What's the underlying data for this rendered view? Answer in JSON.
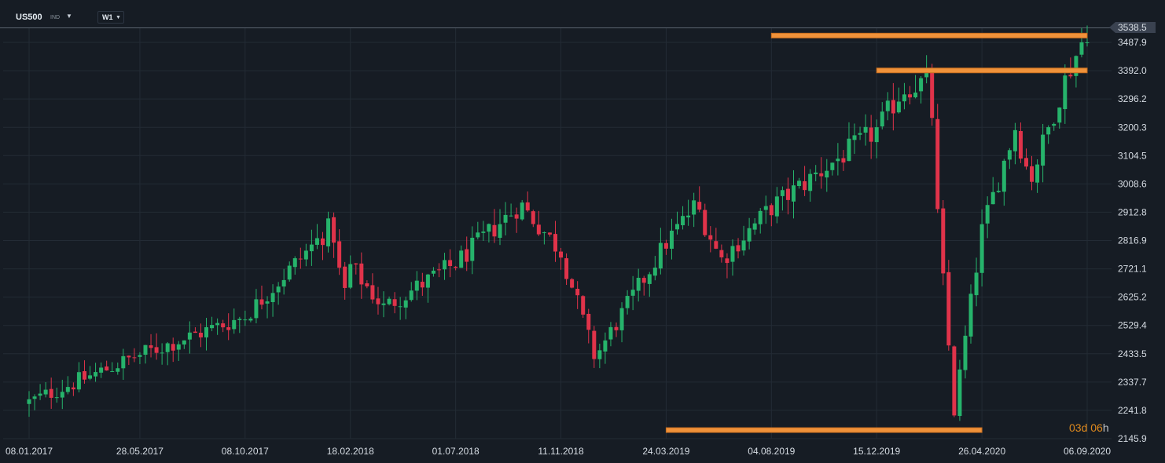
{
  "header": {
    "symbol": "US500",
    "symbol_type": "IND",
    "timeframe": "W1"
  },
  "colors": {
    "background": "#161c24",
    "grid": "#232b35",
    "bull": "#26b36b",
    "bear": "#e0334a",
    "level": "#f0923a"
  },
  "countdown": {
    "main": "03d 06",
    "unit": "h"
  },
  "chart_data": {
    "type": "candlestick",
    "timeframe": "W1",
    "y_ticks": [
      "3538.5",
      "3487.9",
      "3392.0",
      "3296.2",
      "3200.3",
      "3104.5",
      "3008.6",
      "2912.8",
      "2816.9",
      "2721.1",
      "2625.2",
      "2529.4",
      "2433.5",
      "2337.7",
      "2241.8",
      "2145.9"
    ],
    "ylim": [
      2145.9,
      3538.5
    ],
    "current_price": "3538.5",
    "x_ticks": [
      "08.01.2017",
      "28.05.2017",
      "08.10.2017",
      "18.02.2018",
      "01.07.2018",
      "11.11.2018",
      "24.03.2019",
      "04.08.2019",
      "15.12.2019",
      "26.04.2020",
      "06.09.2020"
    ],
    "horizontal_levels": [
      {
        "price": 3511,
        "from": "04.08.2019",
        "to": "06.09.2020"
      },
      {
        "price": 3393,
        "from": "15.12.2019",
        "to": "06.09.2020"
      },
      {
        "price": 2175,
        "from": "24.03.2019",
        "to": "26.04.2020"
      }
    ],
    "anchor_points": [
      {
        "date": "08.01.2017",
        "close": 2270
      },
      {
        "date": "28.05.2017",
        "close": 2430
      },
      {
        "date": "08.10.2017",
        "close": 2560
      },
      {
        "date": "26.01.2018",
        "close": 2870
      },
      {
        "date": "09.02.2018",
        "close": 2620
      },
      {
        "date": "18.02.2018",
        "close": 2730
      },
      {
        "date": "01.04.2018",
        "close": 2590
      },
      {
        "date": "01.07.2018",
        "close": 2740
      },
      {
        "date": "21.09.2018",
        "close": 2940
      },
      {
        "date": "11.11.2018",
        "close": 2780
      },
      {
        "date": "24.12.2018",
        "close": 2420
      },
      {
        "date": "24.03.2019",
        "close": 2810
      },
      {
        "date": "01.05.2019",
        "close": 2940
      },
      {
        "date": "01.06.2019",
        "close": 2750
      },
      {
        "date": "04.08.2019",
        "close": 2930
      },
      {
        "date": "15.12.2019",
        "close": 3190
      },
      {
        "date": "17.01.2020",
        "close": 3330
      },
      {
        "date": "21.02.2020",
        "close": 3360
      },
      {
        "date": "28.02.2020",
        "close": 2960
      },
      {
        "date": "22.03.2020",
        "close": 2240
      },
      {
        "date": "26.04.2020",
        "close": 2850
      },
      {
        "date": "07.06.2020",
        "close": 3200
      },
      {
        "date": "26.06.2020",
        "close": 3020
      },
      {
        "date": "09.08.2020",
        "close": 3360
      },
      {
        "date": "06.09.2020",
        "close": 3530
      }
    ]
  }
}
